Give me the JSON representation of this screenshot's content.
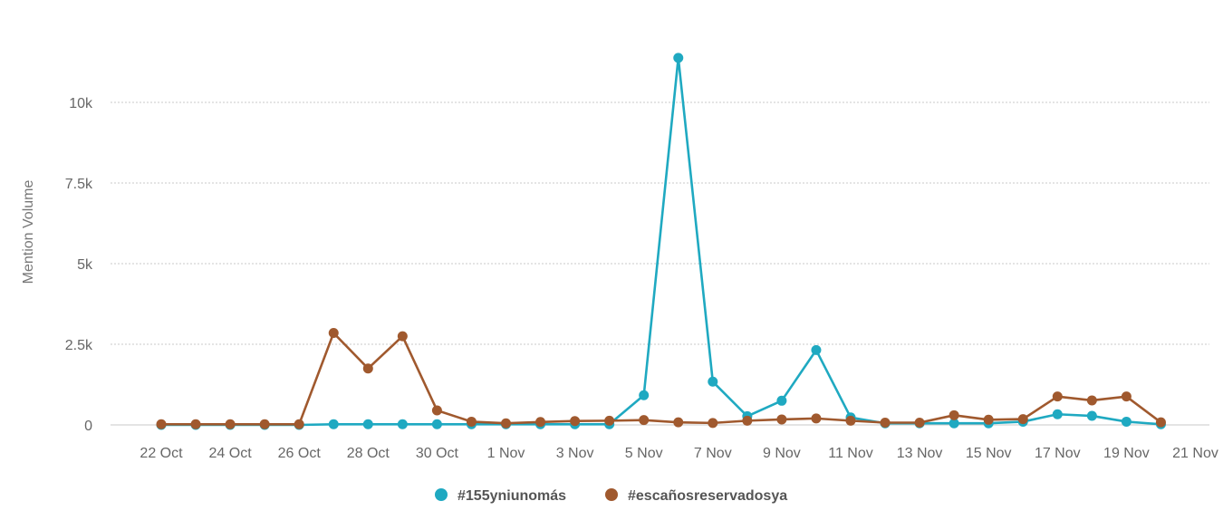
{
  "chart_data": {
    "type": "line",
    "title": "",
    "xlabel": "",
    "ylabel": "Mention Volume",
    "x_ticks": [
      "22 Oct",
      "24 Oct",
      "26 Oct",
      "28 Oct",
      "30 Oct",
      "1 Nov",
      "3 Nov",
      "5 Nov",
      "7 Nov",
      "9 Nov",
      "11 Nov",
      "13 Nov",
      "15 Nov",
      "17 Nov",
      "19 Nov",
      "21 Nov"
    ],
    "y_ticks": [
      {
        "value": 0,
        "label": "0"
      },
      {
        "value": 2500,
        "label": "2.5k"
      },
      {
        "value": 5000,
        "label": "5k"
      },
      {
        "value": 7500,
        "label": "7.5k"
      },
      {
        "value": 10000,
        "label": "10k"
      }
    ],
    "ylim": [
      0,
      11700
    ],
    "grid": true,
    "legend_position": "bottom",
    "x": [
      "22 Oct",
      "23 Oct",
      "24 Oct",
      "25 Oct",
      "26 Oct",
      "27 Oct",
      "28 Oct",
      "29 Oct",
      "30 Oct",
      "31 Oct",
      "1 Nov",
      "2 Nov",
      "3 Nov",
      "4 Nov",
      "5 Nov",
      "6 Nov",
      "7 Nov",
      "8 Nov",
      "9 Nov",
      "10 Nov",
      "11 Nov",
      "12 Nov",
      "13 Nov",
      "14 Nov",
      "15 Nov",
      "16 Nov",
      "17 Nov",
      "18 Nov",
      "19 Nov",
      "20 Nov"
    ],
    "series": [
      {
        "name": "#155yniunomás",
        "color": "#1fa9c1",
        "values": [
          0,
          0,
          0,
          0,
          0,
          20,
          20,
          20,
          20,
          20,
          20,
          20,
          20,
          20,
          920,
          11380,
          1340,
          270,
          750,
          2320,
          230,
          50,
          50,
          50,
          50,
          100,
          330,
          280,
          100,
          20
        ]
      },
      {
        "name": "#escañosreservadosya",
        "color": "#a0592e",
        "values": [
          20,
          20,
          20,
          20,
          20,
          2850,
          1750,
          2750,
          450,
          100,
          50,
          90,
          120,
          130,
          150,
          80,
          60,
          130,
          170,
          200,
          130,
          70,
          70,
          300,
          160,
          180,
          880,
          760,
          880,
          80
        ]
      }
    ]
  }
}
